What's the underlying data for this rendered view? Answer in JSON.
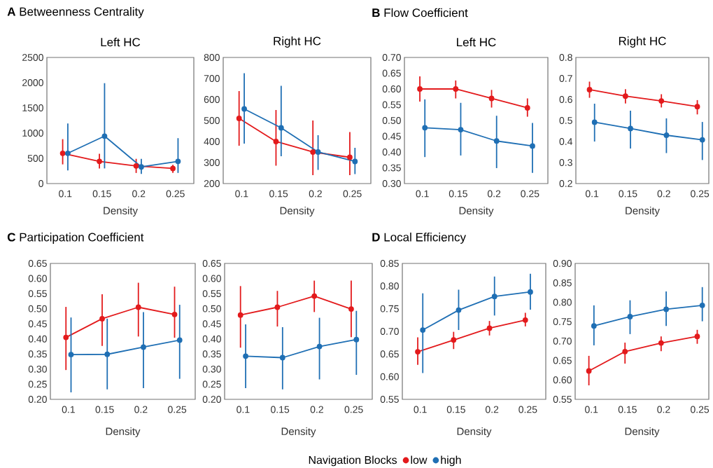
{
  "chart_data": [
    {
      "type": "line",
      "title": "**A** Betweenness Centrality",
      "subtitle": "Left HC",
      "xlabel": "Density",
      "categories": [
        "0.1",
        "0.15",
        "0.2",
        "0.25"
      ],
      "ylim": [
        0,
        2500
      ],
      "yticks": [
        0,
        500,
        1000,
        1500,
        2000,
        2500
      ],
      "marker": "circle",
      "line_style": "solid",
      "series": [
        {
          "color": "#e31a1c",
          "values": [
            600,
            440,
            350,
            300
          ],
          "errors": [
            [
              380,
              880
            ],
            [
              300,
              590
            ],
            [
              210,
              490
            ],
            [
              210,
              370
            ]
          ]
        },
        {
          "color": "#1f6fb4",
          "values": [
            600,
            940,
            330,
            440
          ],
          "errors": [
            [
              260,
              1190
            ],
            [
              300,
              1990
            ],
            [
              190,
              490
            ],
            [
              210,
              900
            ]
          ]
        }
      ]
    },
    {
      "type": "line",
      "subtitle": "Right HC",
      "xlabel": "Density",
      "categories": [
        "0.1",
        "0.15",
        "0.2",
        "0.25"
      ],
      "ylim": [
        200,
        800
      ],
      "yticks": [
        200,
        300,
        400,
        500,
        600,
        700,
        800
      ],
      "marker": "circle",
      "line_style": "solid",
      "series": [
        {
          "color": "#e31a1c",
          "values": [
            510,
            400,
            350,
            325
          ],
          "errors": [
            [
              380,
              640
            ],
            [
              285,
              550
            ],
            [
              240,
              500
            ],
            [
              240,
              445
            ]
          ]
        },
        {
          "color": "#1f6fb4",
          "values": [
            555,
            465,
            350,
            305
          ],
          "errors": [
            [
              390,
              725
            ],
            [
              330,
              665
            ],
            [
              265,
              430
            ],
            [
              245,
              370
            ]
          ]
        }
      ]
    },
    {
      "type": "line",
      "title": "**B** Flow Coefficient",
      "subtitle": "Left HC",
      "xlabel": "Density",
      "categories": [
        "0.1",
        "0.15",
        "0.2",
        "0.25"
      ],
      "ylim": [
        0.3,
        0.7
      ],
      "yticks": [
        {
          "value": 0.3,
          "label": "0.30"
        },
        {
          "value": 0.35,
          "label": "0.35"
        },
        {
          "value": 0.4,
          "label": "0.40"
        },
        {
          "value": 0.45,
          "label": "0.45"
        },
        {
          "value": 0.5,
          "label": "0.50"
        },
        {
          "value": 0.55,
          "label": "0.55"
        },
        {
          "value": 0.6,
          "label": "0.60"
        },
        {
          "value": 0.65,
          "label": "0.65"
        },
        {
          "value": 0.7,
          "label": "0.70"
        }
      ],
      "marker": "circle",
      "line_style": "solid",
      "series": [
        {
          "color": "#e31a1c",
          "values": [
            0.6,
            0.6,
            0.57,
            0.54
          ],
          "errors": [
            [
              0.56,
              0.64
            ],
            [
              0.57,
              0.627
            ],
            [
              0.541,
              0.597
            ],
            [
              0.512,
              0.57
            ]
          ]
        },
        {
          "color": "#1f6fb4",
          "values": [
            0.477,
            0.471,
            0.435,
            0.419
          ],
          "errors": [
            [
              0.384,
              0.567
            ],
            [
              0.389,
              0.556
            ],
            [
              0.349,
              0.515
            ],
            [
              0.334,
              0.492
            ]
          ]
        }
      ]
    },
    {
      "type": "line",
      "subtitle": "Right HC",
      "xlabel": "Density",
      "categories": [
        "0.1",
        "0.15",
        "0.2",
        "0.25"
      ],
      "ylim": [
        0.2,
        0.8
      ],
      "yticks": [
        0.2,
        0.3,
        0.4,
        0.5,
        0.6,
        0.7,
        0.8
      ],
      "marker": "circle",
      "line_style": "solid",
      "series": [
        {
          "color": "#e31a1c",
          "values": [
            0.647,
            0.616,
            0.593,
            0.566
          ],
          "errors": [
            [
              0.608,
              0.685
            ],
            [
              0.581,
              0.649
            ],
            [
              0.562,
              0.625
            ],
            [
              0.529,
              0.597
            ]
          ]
        },
        {
          "color": "#1f6fb4",
          "values": [
            0.492,
            0.462,
            0.43,
            0.408
          ],
          "errors": [
            [
              0.4,
              0.58
            ],
            [
              0.367,
              0.547
            ],
            [
              0.345,
              0.51
            ],
            [
              0.312,
              0.493
            ]
          ]
        }
      ]
    },
    {
      "type": "line",
      "title": "**C** Participation Coefficient",
      "xlabel": "Density",
      "categories": [
        "0.1",
        "0.15",
        "0.2",
        "0.25"
      ],
      "ylim": [
        0.2,
        0.65
      ],
      "yticks": [
        {
          "value": 0.2,
          "label": "0.20"
        },
        {
          "value": 0.25,
          "label": "0.25"
        },
        {
          "value": 0.3,
          "label": "0.30"
        },
        {
          "value": 0.35,
          "label": "0.35"
        },
        {
          "value": 0.4,
          "label": "0.40"
        },
        {
          "value": 0.45,
          "label": "0.45"
        },
        {
          "value": 0.5,
          "label": "0.50"
        },
        {
          "value": 0.55,
          "label": "0.55"
        },
        {
          "value": 0.6,
          "label": "0.60"
        },
        {
          "value": 0.65,
          "label": "0.65"
        }
      ],
      "marker": "circle",
      "line_style": "solid",
      "series": [
        {
          "color": "#e31a1c",
          "values": [
            0.405,
            0.467,
            0.505,
            0.481
          ],
          "errors": [
            [
              0.297,
              0.506
            ],
            [
              0.377,
              0.548
            ],
            [
              0.408,
              0.586
            ],
            [
              0.404,
              0.573
            ]
          ]
        },
        {
          "color": "#1f6fb4",
          "values": [
            0.348,
            0.349,
            0.373,
            0.396
          ],
          "errors": [
            [
              0.223,
              0.471
            ],
            [
              0.233,
              0.467
            ],
            [
              0.237,
              0.489
            ],
            [
              0.268,
              0.513
            ]
          ]
        }
      ]
    },
    {
      "type": "line",
      "xlabel": "Density",
      "categories": [
        "0.1",
        "0.15",
        "0.2",
        "0.25"
      ],
      "ylim": [
        0.2,
        0.65
      ],
      "yticks": [
        {
          "value": 0.2,
          "label": "0.20"
        },
        {
          "value": 0.25,
          "label": "0.25"
        },
        {
          "value": 0.3,
          "label": "0.30"
        },
        {
          "value": 0.35,
          "label": "0.35"
        },
        {
          "value": 0.4,
          "label": "0.40"
        },
        {
          "value": 0.45,
          "label": "0.45"
        },
        {
          "value": 0.5,
          "label": "0.50"
        },
        {
          "value": 0.55,
          "label": "0.55"
        },
        {
          "value": 0.6,
          "label": "0.60"
        },
        {
          "value": 0.65,
          "label": "0.65"
        }
      ],
      "marker": "circle",
      "line_style": "solid",
      "series": [
        {
          "color": "#e31a1c",
          "values": [
            0.479,
            0.505,
            0.542,
            0.499
          ],
          "errors": [
            [
              0.371,
              0.575
            ],
            [
              0.441,
              0.559
            ],
            [
              0.489,
              0.593
            ],
            [
              0.406,
              0.593
            ]
          ]
        },
        {
          "color": "#1f6fb4",
          "values": [
            0.343,
            0.338,
            0.375,
            0.398
          ],
          "errors": [
            [
              0.237,
              0.448
            ],
            [
              0.233,
              0.439
            ],
            [
              0.266,
              0.47
            ],
            [
              0.281,
              0.493
            ]
          ]
        }
      ]
    },
    {
      "type": "line",
      "title": "**D** Local Efficiency",
      "xlabel": "Density",
      "categories": [
        "0.1",
        "0.15",
        "0.2",
        "0.25"
      ],
      "ylim": [
        0.55,
        0.85
      ],
      "yticks": [
        {
          "value": 0.55,
          "label": "0.55"
        },
        {
          "value": 0.6,
          "label": "0.60"
        },
        {
          "value": 0.65,
          "label": "0.65"
        },
        {
          "value": 0.7,
          "label": "0.70"
        },
        {
          "value": 0.75,
          "label": "0.75"
        },
        {
          "value": 0.8,
          "label": "0.80"
        },
        {
          "value": 0.85,
          "label": "0.85"
        }
      ],
      "marker": "circle",
      "line_style": "solid",
      "series": [
        {
          "color": "#e31a1c",
          "values": [
            0.655,
            0.681,
            0.707,
            0.725
          ],
          "errors": [
            [
              0.626,
              0.687
            ],
            [
              0.661,
              0.699
            ],
            [
              0.691,
              0.723
            ],
            [
              0.711,
              0.741
            ]
          ]
        },
        {
          "color": "#1f6fb4",
          "values": [
            0.703,
            0.747,
            0.777,
            0.787
          ],
          "errors": [
            [
              0.608,
              0.784
            ],
            [
              0.703,
              0.792
            ],
            [
              0.735,
              0.821
            ],
            [
              0.748,
              0.827
            ]
          ]
        }
      ]
    },
    {
      "type": "line",
      "xlabel": "Density",
      "categories": [
        "0.1",
        "0.15",
        "0.2",
        "0.25"
      ],
      "ylim": [
        0.55,
        0.9
      ],
      "yticks": [
        {
          "value": 0.55,
          "label": "0.55"
        },
        {
          "value": 0.6,
          "label": "0.60"
        },
        {
          "value": 0.65,
          "label": "0.65"
        },
        {
          "value": 0.7,
          "label": "0.70"
        },
        {
          "value": 0.75,
          "label": "0.75"
        },
        {
          "value": 0.8,
          "label": "0.80"
        },
        {
          "value": 0.85,
          "label": "0.85"
        },
        {
          "value": 0.9,
          "label": "0.90"
        }
      ],
      "marker": "circle",
      "line_style": "solid",
      "legend": "bottom",
      "legend_title": "Navigation Blocks",
      "series": [
        {
          "name": "low",
          "color": "#e31a1c",
          "values": [
            0.623,
            0.673,
            0.695,
            0.712
          ],
          "errors": [
            [
              0.586,
              0.662
            ],
            [
              0.642,
              0.696
            ],
            [
              0.674,
              0.712
            ],
            [
              0.693,
              0.729
            ]
          ]
        },
        {
          "name": "high",
          "color": "#1f6fb4",
          "values": [
            0.739,
            0.763,
            0.782,
            0.792
          ],
          "errors": [
            [
              0.689,
              0.792
            ],
            [
              0.718,
              0.805
            ],
            [
              0.739,
              0.828
            ],
            [
              0.751,
              0.839
            ]
          ]
        }
      ]
    }
  ]
}
